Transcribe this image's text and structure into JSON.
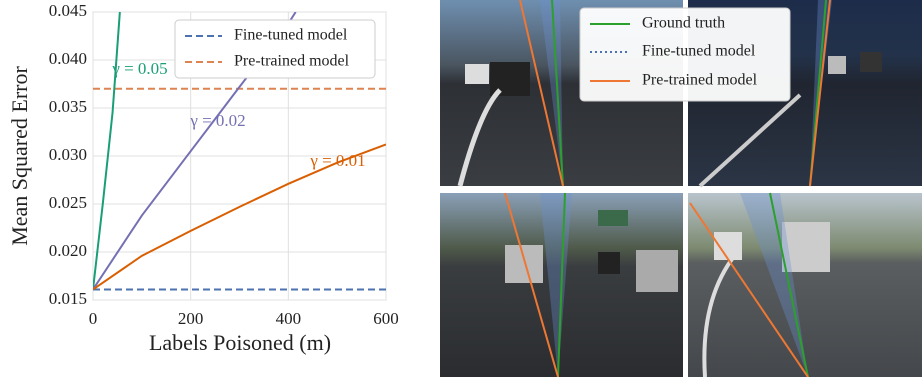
{
  "chart_data": {
    "type": "line",
    "xlabel": "Labels Poisoned (m)",
    "ylabel": "Mean Squared Error",
    "xlim": [
      0,
      600
    ],
    "xticks": [
      0,
      200,
      400,
      600
    ],
    "ylim": [
      0.015,
      0.045
    ],
    "yticks": [
      0.015,
      {
        "value": 0.02,
        "label": "0.020"
      },
      0.025,
      {
        "value": 0.03,
        "label": "0.030"
      },
      0.035,
      {
        "value": 0.04,
        "label": "0.040"
      },
      0.045
    ],
    "grid": true,
    "legend": "upper right",
    "series": [
      {
        "name": "Fine-tuned model",
        "color": "#4c72b0",
        "dash": "dashed",
        "x": [
          0,
          600
        ],
        "values": [
          0.0161,
          0.0161
        ]
      },
      {
        "name": "Pre-trained model",
        "color": "#dd8452",
        "dash": "dashed",
        "x": [
          0,
          600
        ],
        "values": [
          0.037,
          0.037
        ]
      },
      {
        "label": "γ = 0.05",
        "color": "#1a9e77",
        "x": [
          0,
          20,
          40,
          55
        ],
        "values": [
          0.0161,
          0.025,
          0.0345,
          0.045
        ]
      },
      {
        "label": "γ = 0.02",
        "color": "#7570b3",
        "x": [
          0,
          100,
          200,
          300,
          400,
          415
        ],
        "values": [
          0.0161,
          0.0238,
          0.0305,
          0.0372,
          0.0438,
          0.045
        ]
      },
      {
        "label": "γ = 0.01",
        "color": "#d95f02",
        "x": [
          0,
          100,
          200,
          300,
          400,
          500,
          600
        ],
        "values": [
          0.0161,
          0.0196,
          0.0222,
          0.0247,
          0.0271,
          0.0293,
          0.0312
        ]
      }
    ]
  },
  "image_legend": [
    "Ground truth",
    "Fine-tuned model",
    "Pre-trained model"
  ]
}
